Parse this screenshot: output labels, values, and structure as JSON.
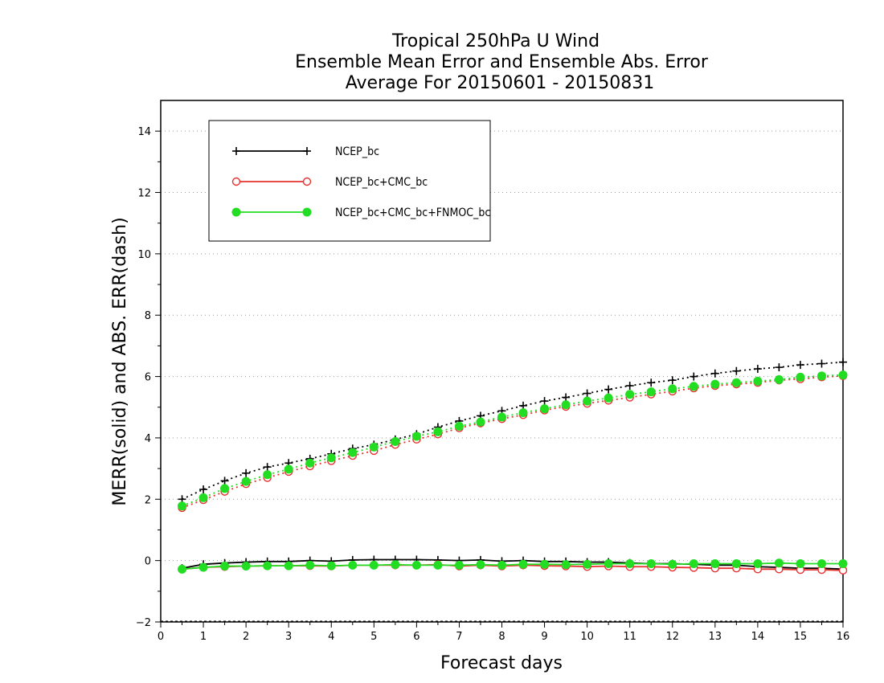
{
  "chart_data": {
    "type": "line",
    "title": [
      "Tropical 250hPa U Wind",
      "Ensemble Mean Error and Ensemble Abs. Error",
      "Average For 20150601 - 20150831"
    ],
    "xlabel": "Forecast days",
    "ylabel": "MERR(solid) and ABS. ERR(dash)",
    "xlim": [
      0,
      16
    ],
    "ylim": [
      -2,
      15
    ],
    "xticks": [
      0,
      1,
      2,
      3,
      4,
      5,
      6,
      7,
      8,
      9,
      10,
      11,
      12,
      13,
      14,
      15,
      16
    ],
    "yticks": [
      -2,
      0,
      2,
      4,
      6,
      8,
      10,
      12,
      14
    ],
    "grid": "horizontal-dotted",
    "legend_position": "top-left",
    "x": [
      0.5,
      1,
      1.5,
      2,
      2.5,
      3,
      3.5,
      4,
      4.5,
      5,
      5.5,
      6,
      6.5,
      7,
      7.5,
      8,
      8.5,
      9,
      9.5,
      10,
      10.5,
      11,
      11.5,
      12,
      12.5,
      13,
      13.5,
      14,
      14.5,
      15,
      15.5,
      16
    ],
    "series": [
      {
        "name": "NCEP_bc",
        "color": "#000000",
        "marker": "plus",
        "merr": [
          -0.25,
          -0.12,
          -0.08,
          -0.05,
          -0.03,
          -0.03,
          0.0,
          -0.02,
          0.02,
          0.03,
          0.03,
          0.03,
          0.02,
          0.0,
          0.02,
          -0.02,
          0.0,
          -0.03,
          -0.03,
          -0.05,
          -0.05,
          -0.08,
          -0.1,
          -0.1,
          -0.12,
          -0.15,
          -0.15,
          -0.2,
          -0.22,
          -0.25,
          -0.25,
          -0.28
        ],
        "abs_err": [
          2.0,
          2.32,
          2.6,
          2.85,
          3.05,
          3.18,
          3.32,
          3.48,
          3.65,
          3.78,
          3.95,
          4.12,
          4.35,
          4.55,
          4.72,
          4.88,
          5.05,
          5.2,
          5.32,
          5.45,
          5.58,
          5.7,
          5.8,
          5.88,
          6.0,
          6.1,
          6.18,
          6.25,
          6.3,
          6.38,
          6.42,
          6.47
        ]
      },
      {
        "name": "NCEP_bc+CMC_bc",
        "color": "#e83030",
        "marker": "open-circle",
        "merr": [
          -0.28,
          -0.22,
          -0.2,
          -0.18,
          -0.17,
          -0.17,
          -0.17,
          -0.18,
          -0.15,
          -0.15,
          -0.15,
          -0.15,
          -0.13,
          -0.18,
          -0.15,
          -0.18,
          -0.15,
          -0.17,
          -0.18,
          -0.2,
          -0.18,
          -0.2,
          -0.2,
          -0.22,
          -0.23,
          -0.25,
          -0.25,
          -0.28,
          -0.28,
          -0.3,
          -0.3,
          -0.32
        ],
        "abs_err": [
          1.72,
          1.98,
          2.25,
          2.5,
          2.7,
          2.9,
          3.08,
          3.25,
          3.42,
          3.58,
          3.78,
          3.95,
          4.12,
          4.32,
          4.48,
          4.62,
          4.75,
          4.9,
          5.02,
          5.12,
          5.22,
          5.32,
          5.42,
          5.52,
          5.62,
          5.7,
          5.75,
          5.8,
          5.88,
          5.92,
          5.98,
          6.02
        ]
      },
      {
        "name": "NCEP_bc+CMC_bc+FNMOC_bc",
        "color": "#22dd22",
        "marker": "filled-circle",
        "merr": [
          -0.28,
          -0.22,
          -0.18,
          -0.18,
          -0.17,
          -0.17,
          -0.15,
          -0.17,
          -0.15,
          -0.15,
          -0.13,
          -0.15,
          -0.15,
          -0.15,
          -0.13,
          -0.15,
          -0.12,
          -0.12,
          -0.13,
          -0.12,
          -0.1,
          -0.1,
          -0.1,
          -0.12,
          -0.1,
          -0.1,
          -0.1,
          -0.1,
          -0.08,
          -0.1,
          -0.1,
          -0.1
        ],
        "abs_err": [
          1.78,
          2.05,
          2.35,
          2.58,
          2.8,
          2.98,
          3.18,
          3.35,
          3.52,
          3.7,
          3.88,
          4.05,
          4.2,
          4.38,
          4.52,
          4.68,
          4.82,
          4.95,
          5.08,
          5.2,
          5.3,
          5.42,
          5.5,
          5.6,
          5.68,
          5.75,
          5.8,
          5.85,
          5.9,
          5.98,
          6.02,
          6.05
        ]
      }
    ]
  }
}
